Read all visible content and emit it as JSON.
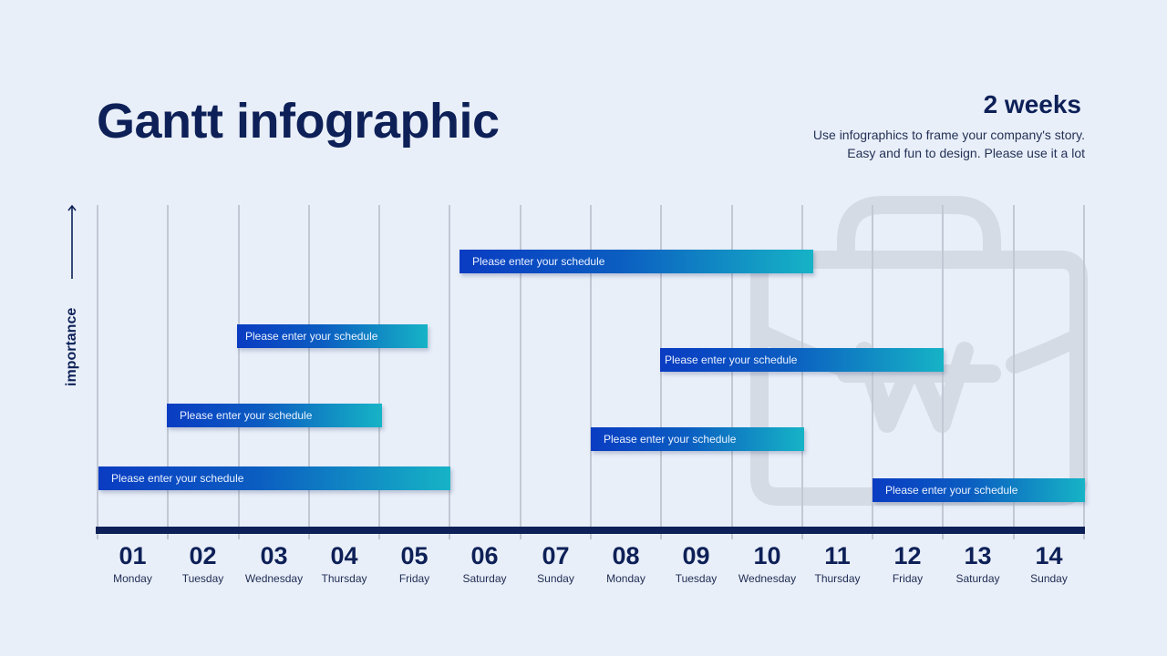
{
  "header": {
    "title": "Gantt infographic",
    "duration": "2 weeks",
    "description_line1": "Use infographics to frame your company's story.",
    "description_line2": "Easy and fun to design. Please use it a lot"
  },
  "y_axis": {
    "label": "importance",
    "arrow": "up-arrow-icon"
  },
  "watermark": {
    "icon": "briefcase-won-icon"
  },
  "colors": {
    "navy": "#0d2057",
    "background": "#e9eff9",
    "bar_gradient_start": "#0a3cc2",
    "bar_gradient_end": "#16b3c6",
    "gridline": "#c3c9d4"
  },
  "days": [
    {
      "num": "01",
      "name": "Monday"
    },
    {
      "num": "02",
      "name": "Tuesday"
    },
    {
      "num": "03",
      "name": "Wednesday"
    },
    {
      "num": "04",
      "name": "Thursday"
    },
    {
      "num": "05",
      "name": "Friday"
    },
    {
      "num": "06",
      "name": "Saturday"
    },
    {
      "num": "07",
      "name": "Sunday"
    },
    {
      "num": "08",
      "name": "Monday"
    },
    {
      "num": "09",
      "name": "Tuesday"
    },
    {
      "num": "10",
      "name": "Wednesday"
    },
    {
      "num": "11",
      "name": "Thursday"
    },
    {
      "num": "12",
      "name": "Friday"
    },
    {
      "num": "13",
      "name": "Saturday"
    },
    {
      "num": "14",
      "name": "Sunday"
    }
  ],
  "tasks": [
    {
      "label": "Please enter your schedule",
      "start_day": 6,
      "end_day": 11
    },
    {
      "label": "Please enter your schedule",
      "start_day": 3,
      "end_day": 5
    },
    {
      "label": "Please enter your schedule",
      "start_day": 9,
      "end_day": 12
    },
    {
      "label": "Please enter your schedule",
      "start_day": 2,
      "end_day": 5
    },
    {
      "label": "Please enter your schedule",
      "start_day": 8,
      "end_day": 10
    },
    {
      "label": "Please enter your schedule",
      "start_day": 1,
      "end_day": 5
    },
    {
      "label": "Please enter your schedule",
      "start_day": 12,
      "end_day": 14
    }
  ],
  "chart_data": {
    "type": "gantt",
    "title": "Gantt infographic",
    "subtitle": "2 weeks",
    "xlabel": "",
    "ylabel": "importance",
    "categories": [
      "01 Monday",
      "02 Tuesday",
      "03 Wednesday",
      "04 Thursday",
      "05 Friday",
      "06 Saturday",
      "07 Sunday",
      "08 Monday",
      "09 Tuesday",
      "10 Wednesday",
      "11 Thursday",
      "12 Friday",
      "13 Saturday",
      "14 Sunday"
    ],
    "series": [
      {
        "name": "Please enter your schedule",
        "start": 6,
        "end": 11,
        "importance_rank": 1
      },
      {
        "name": "Please enter your schedule",
        "start": 3,
        "end": 5,
        "importance_rank": 2
      },
      {
        "name": "Please enter your schedule",
        "start": 9,
        "end": 12,
        "importance_rank": 3
      },
      {
        "name": "Please enter your schedule",
        "start": 2,
        "end": 5,
        "importance_rank": 4
      },
      {
        "name": "Please enter your schedule",
        "start": 8,
        "end": 10,
        "importance_rank": 5
      },
      {
        "name": "Please enter your schedule",
        "start": 1,
        "end": 5,
        "importance_rank": 6
      },
      {
        "name": "Please enter your schedule",
        "start": 12,
        "end": 14,
        "importance_rank": 7
      }
    ],
    "grid": true
  }
}
